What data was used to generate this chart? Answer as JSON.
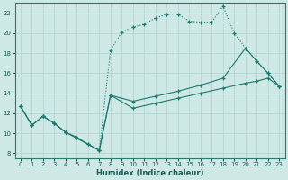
{
  "xlabel": "Humidex (Indice chaleur)",
  "xlim": [
    -0.5,
    23.5
  ],
  "ylim": [
    7.5,
    23
  ],
  "xticks": [
    0,
    1,
    2,
    3,
    4,
    5,
    6,
    7,
    8,
    9,
    10,
    11,
    12,
    13,
    14,
    15,
    16,
    17,
    18,
    19,
    20,
    21,
    22,
    23
  ],
  "yticks": [
    8,
    10,
    12,
    14,
    16,
    18,
    20,
    22
  ],
  "bg_color": "#cde8e5",
  "line_color": "#1a7a6e",
  "grid_color": "#b8d8d5",
  "line_dotted": {
    "x": [
      0,
      1,
      2,
      3,
      4,
      5,
      6,
      7,
      8,
      9,
      10,
      11,
      12,
      13,
      14,
      15,
      16,
      17,
      18,
      19,
      20,
      21,
      22,
      23
    ],
    "y": [
      12.7,
      10.8,
      11.7,
      11.0,
      10.1,
      9.6,
      8.9,
      8.3,
      18.3,
      20.1,
      20.6,
      20.9,
      21.5,
      21.9,
      21.9,
      21.2,
      21.1,
      21.1,
      22.7,
      20.0,
      18.5,
      17.2,
      16.0,
      14.7
    ]
  },
  "line_solid1": {
    "x": [
      0,
      1,
      2,
      3,
      4,
      5,
      6,
      7,
      8,
      10,
      12,
      14,
      16,
      18,
      20,
      21,
      22,
      23
    ],
    "y": [
      12.7,
      10.8,
      11.7,
      11.0,
      10.1,
      9.6,
      8.9,
      8.3,
      13.8,
      13.2,
      13.7,
      14.2,
      14.8,
      15.5,
      18.5,
      17.2,
      16.0,
      14.7
    ]
  },
  "line_solid2": {
    "x": [
      0,
      1,
      2,
      3,
      4,
      7,
      8,
      10,
      12,
      14,
      16,
      18,
      20,
      21,
      22,
      23
    ],
    "y": [
      12.7,
      10.8,
      11.7,
      11.0,
      10.1,
      8.3,
      13.8,
      12.5,
      13.0,
      13.5,
      14.0,
      14.5,
      15.0,
      15.2,
      15.5,
      14.7
    ]
  }
}
